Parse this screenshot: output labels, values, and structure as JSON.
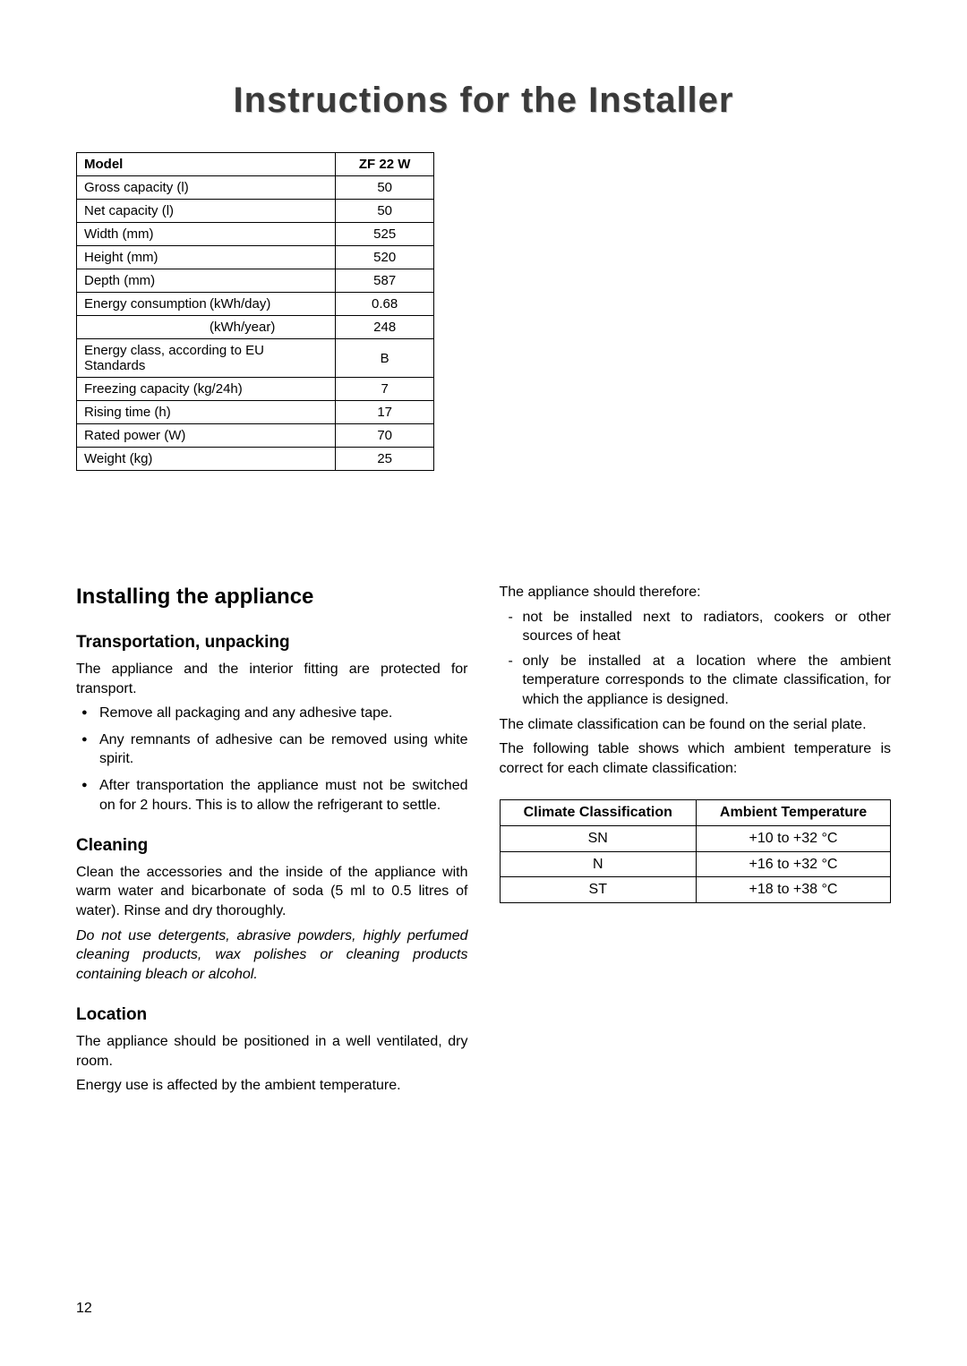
{
  "title": "Instructions for the Installer",
  "specs": {
    "header_label": "Model",
    "header_value": "ZF 22 W",
    "rows": [
      {
        "label": "Gross capacity (l)",
        "value": "50"
      },
      {
        "label": "Net capacity (l)",
        "value": "50"
      },
      {
        "label": "Width (mm)",
        "value": "525"
      },
      {
        "label": "Height (mm)",
        "value": "520"
      },
      {
        "label": "Depth (mm)",
        "value": "587"
      }
    ],
    "energy_label": "Energy consumption",
    "energy_day_unit": "(kWh/day)",
    "energy_day_value": "0.68",
    "energy_year_unit": "(kWh/year)",
    "energy_year_value": "248",
    "rows2": [
      {
        "label": "Energy class, according to EU Standards",
        "value": "B"
      },
      {
        "label": "Freezing capacity (kg/24h)",
        "value": "7"
      },
      {
        "label": "Rising time (h)",
        "value": "17"
      },
      {
        "label": "Rated power (W)",
        "value": "70"
      },
      {
        "label": "Weight (kg)",
        "value": "25"
      }
    ]
  },
  "left": {
    "h2": "Installing the appliance",
    "transport_h": "Transportation, unpacking",
    "transport_p": "The appliance and the interior fitting are protected for transport.",
    "transport_items": [
      "Remove all packaging and any adhesive tape.",
      "Any remnants of adhesive can be removed using white spirit.",
      "After transportation the appliance must not be switched on for 2 hours. This is to allow the refrigerant to settle."
    ],
    "cleaning_h": "Cleaning",
    "cleaning_p": "Clean the accessories and the inside of the appliance with warm water and bicarbonate of soda (5 ml to 0.5 litres of water). Rinse and dry thoroughly.",
    "cleaning_warn": "Do not use detergents, abrasive powders, highly perfumed cleaning products, wax polishes or cleaning products containing bleach or alcohol.",
    "location_h": "Location",
    "location_p1": "The appliance should be positioned in a well ventilated, dry room.",
    "location_p2": "Energy use is affected by the ambient temperature."
  },
  "right": {
    "intro": "The appliance should therefore:",
    "items": [
      "not be installed next to radiators, cookers or other sources of heat",
      "only be installed at a location where the ambient temperature corresponds to the climate classification, for which the appliance is designed."
    ],
    "serial": "The climate classification can be found on the serial plate.",
    "table_intro": "The following table shows which ambient temperature is correct for each climate classification:",
    "climate": {
      "h1": "Climate Classification",
      "h2": "Ambient Temperature",
      "rows": [
        {
          "c": "SN",
          "t": "+10 to +32 °C"
        },
        {
          "c": "N",
          "t": "+16 to +32 °C"
        },
        {
          "c": "ST",
          "t": "+18 to +38 °C"
        }
      ]
    }
  },
  "page_number": "12"
}
